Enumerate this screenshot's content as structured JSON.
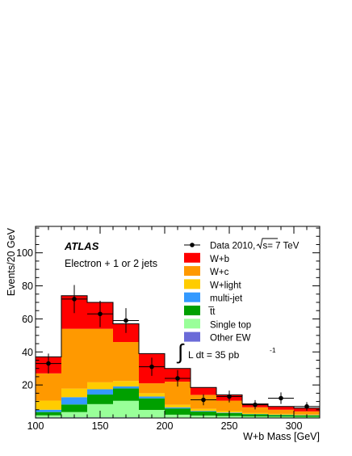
{
  "chart_data": {
    "type": "bar",
    "stacked": true,
    "x_bin_edges": [
      100,
      120,
      140,
      160,
      180,
      200,
      220,
      240,
      260,
      280,
      300,
      320
    ],
    "xlim": [
      100,
      320
    ],
    "ylim": [
      0,
      116
    ],
    "xlabel": "W+b Mass [GeV]",
    "ylabel": "Events/20 GeV",
    "x_ticks": [
      100,
      150,
      200,
      250,
      300
    ],
    "y_ticks": [
      20,
      40,
      60,
      80,
      100
    ],
    "grid": false,
    "legend_position": "top-right",
    "series": [
      {
        "name": "Other EW",
        "color": "#6a6ad8",
        "values": [
          0.4,
          0.4,
          0.4,
          0.4,
          0.3,
          0.3,
          0.2,
          0.2,
          0.1,
          0.1,
          0.1
        ]
      },
      {
        "name": "Single top",
        "color": "#99ff99",
        "values": [
          1.2,
          3.2,
          8.0,
          10.0,
          4.6,
          1.7,
          1.3,
          1.0,
          0.8,
          0.7,
          0.6
        ]
      },
      {
        "name": "t̅t",
        "color": "#00a000",
        "values": [
          2.0,
          4.6,
          5.8,
          7.5,
          7.0,
          3.8,
          2.4,
          1.8,
          1.3,
          1.0,
          0.8
        ]
      },
      {
        "name": "multi-jet",
        "color": "#3399ff",
        "values": [
          1.4,
          4.4,
          3.2,
          1.2,
          1.1,
          0.6,
          0.4,
          0.3,
          0.2,
          0.2,
          0.2
        ]
      },
      {
        "name": "W+light",
        "color": "#ffcc00",
        "values": [
          5.5,
          5.2,
          4.2,
          3.3,
          2.0,
          1.6,
          1.2,
          0.9,
          0.6,
          0.5,
          0.4
        ]
      },
      {
        "name": "W+c",
        "color": "#ff9900",
        "values": [
          16.5,
          36.2,
          32.4,
          23.6,
          6.0,
          14.0,
          8.5,
          6.3,
          3.5,
          2.5,
          1.9
        ]
      },
      {
        "name": "W+b",
        "color": "#ff0000",
        "values": [
          10.0,
          20.0,
          16.0,
          11.0,
          18.0,
          8.0,
          4.5,
          3.5,
          2.0,
          2.0,
          2.0
        ]
      }
    ],
    "data_points": {
      "name": "Data 2010,",
      "name_suffix": "s= 7 TeV",
      "x": [
        110,
        130,
        150,
        170,
        190,
        210,
        230,
        250,
        270,
        290,
        310
      ],
      "y": [
        33,
        72,
        63,
        59,
        31,
        24,
        11,
        13,
        8,
        12,
        7
      ],
      "yerr": [
        6,
        8.5,
        8,
        7.5,
        5.5,
        5,
        3.3,
        3.6,
        2.8,
        3.5,
        2.6
      ],
      "xerr": 10
    },
    "annotations": {
      "experiment": "ATLAS",
      "selection": "Electron + 1 or 2 jets",
      "luminosity_main": "L dt = 35 pb",
      "luminosity_exponent": "-1"
    }
  }
}
